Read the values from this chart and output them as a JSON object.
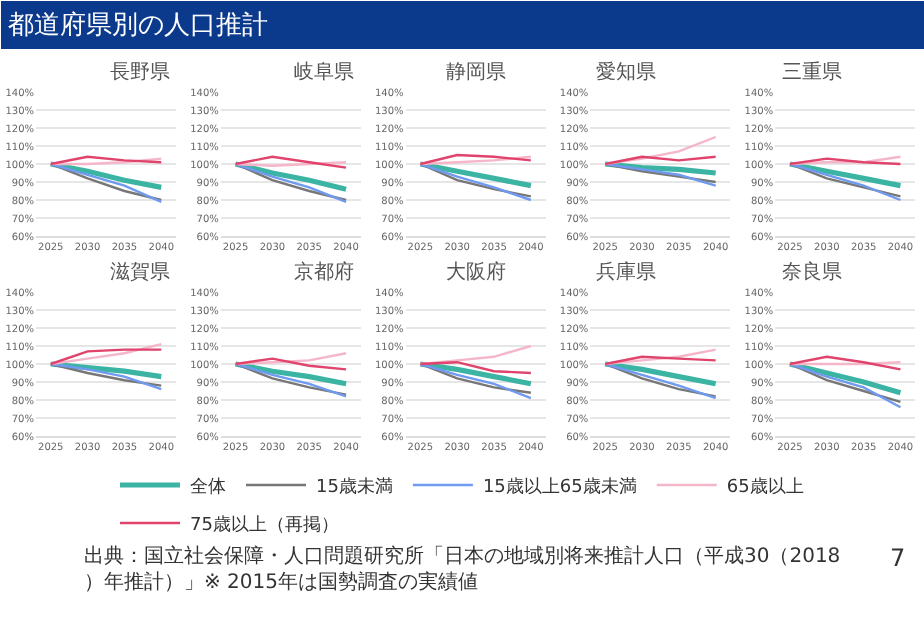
{
  "chart_data": [
    {
      "type": "line",
      "title": "長野県",
      "annotations": [
        "都道府県別の人口推計",
        "出典：国立社会保障・人口問題研究所「日本の地域別将来推計人口（平成30（2018）年推計）」※ 2015年は国勢調査の実績値",
        "7"
      ],
      "x": [
        2025,
        2030,
        2035,
        2040
      ],
      "xticks": [
        2025,
        2030,
        2035,
        2040
      ],
      "xlim": [
        2023,
        2042
      ],
      "ylim": [
        60,
        140
      ],
      "yticks": [
        {
          "value": 60,
          "label": "60%"
        },
        {
          "value": 70,
          "label": "70%"
        },
        {
          "value": 80,
          "label": "80%"
        },
        {
          "value": 90,
          "label": "90%"
        },
        {
          "value": 100,
          "label": "100%"
        },
        {
          "value": 110,
          "label": "110%"
        },
        {
          "value": 120,
          "label": "120%"
        },
        {
          "value": 130,
          "label": "130%"
        },
        {
          "value": 140,
          "label": "140%"
        }
      ],
      "grid": "y",
      "legend": "bottom",
      "series": [
        {
          "name": "全体",
          "color": "#3cb4a4",
          "values": [
            100,
            96,
            91,
            87
          ]
        },
        {
          "name": "15歳未満",
          "color": "#777777",
          "values": [
            100,
            92,
            85,
            80
          ]
        },
        {
          "name": "15歳以上65歳未満",
          "color": "#6f9af0",
          "values": [
            100,
            94,
            88,
            79
          ]
        },
        {
          "name": "65歳以上",
          "color": "#f4b6c8",
          "values": [
            100,
            100,
            101,
            103
          ]
        },
        {
          "name": "75歳以上（再掲）",
          "color": "#e0446c",
          "values": [
            100,
            104,
            102,
            101
          ]
        }
      ]
    },
    {
      "type": "line",
      "title": "岐阜県",
      "x": [
        2025,
        2030,
        2035,
        2040
      ],
      "xticks": [
        2025,
        2030,
        2035,
        2040
      ],
      "xlim": [
        2023,
        2042
      ],
      "ylim": [
        60,
        140
      ],
      "yticks": [
        {
          "value": 60,
          "label": "60%"
        },
        {
          "value": 70,
          "label": "70%"
        },
        {
          "value": 80,
          "label": "80%"
        },
        {
          "value": 90,
          "label": "90%"
        },
        {
          "value": 100,
          "label": "100%"
        },
        {
          "value": 110,
          "label": "110%"
        },
        {
          "value": 120,
          "label": "120%"
        },
        {
          "value": 130,
          "label": "130%"
        },
        {
          "value": 140,
          "label": "140%"
        }
      ],
      "grid": "y",
      "series": [
        {
          "name": "全体",
          "color": "#3cb4a4",
          "values": [
            100,
            95,
            91,
            86
          ]
        },
        {
          "name": "15歳未満",
          "color": "#777777",
          "values": [
            100,
            91,
            85,
            80
          ]
        },
        {
          "name": "15歳以上65歳未満",
          "color": "#6f9af0",
          "values": [
            100,
            93,
            87,
            79
          ]
        },
        {
          "name": "65歳以上",
          "color": "#f4b6c8",
          "values": [
            100,
            99,
            100,
            101
          ]
        },
        {
          "name": "75歳以上（再掲）",
          "color": "#e0446c",
          "values": [
            100,
            104,
            101,
            98
          ]
        }
      ]
    },
    {
      "type": "line",
      "title": "静岡県",
      "x": [
        2025,
        2030,
        2035,
        2040
      ],
      "xticks": [
        2025,
        2030,
        2035,
        2040
      ],
      "xlim": [
        2023,
        2042
      ],
      "ylim": [
        60,
        140
      ],
      "yticks": [
        {
          "value": 60,
          "label": "60%"
        },
        {
          "value": 70,
          "label": "70%"
        },
        {
          "value": 80,
          "label": "80%"
        },
        {
          "value": 90,
          "label": "90%"
        },
        {
          "value": 100,
          "label": "100%"
        },
        {
          "value": 110,
          "label": "110%"
        },
        {
          "value": 120,
          "label": "120%"
        },
        {
          "value": 130,
          "label": "130%"
        },
        {
          "value": 140,
          "label": "140%"
        }
      ],
      "grid": "y",
      "series": [
        {
          "name": "全体",
          "color": "#3cb4a4",
          "values": [
            100,
            96,
            92,
            88
          ]
        },
        {
          "name": "15歳未満",
          "color": "#777777",
          "values": [
            100,
            91,
            86,
            82
          ]
        },
        {
          "name": "15歳以上65歳未満",
          "color": "#6f9af0",
          "values": [
            100,
            93,
            87,
            80
          ]
        },
        {
          "name": "65歳以上",
          "color": "#f4b6c8",
          "values": [
            100,
            101,
            102,
            104
          ]
        },
        {
          "name": "75歳以上（再掲）",
          "color": "#e0446c",
          "values": [
            100,
            105,
            104,
            102
          ]
        }
      ]
    },
    {
      "type": "line",
      "title": "愛知県",
      "x": [
        2025,
        2030,
        2035,
        2040
      ],
      "xticks": [
        2025,
        2030,
        2035,
        2040
      ],
      "xlim": [
        2023,
        2042
      ],
      "ylim": [
        60,
        140
      ],
      "yticks": [
        {
          "value": 60,
          "label": "60%"
        },
        {
          "value": 70,
          "label": "70%"
        },
        {
          "value": 80,
          "label": "80%"
        },
        {
          "value": 90,
          "label": "90%"
        },
        {
          "value": 100,
          "label": "100%"
        },
        {
          "value": 110,
          "label": "110%"
        },
        {
          "value": 120,
          "label": "120%"
        },
        {
          "value": 130,
          "label": "130%"
        },
        {
          "value": 140,
          "label": "140%"
        }
      ],
      "grid": "y",
      "series": [
        {
          "name": "全体",
          "color": "#3cb4a4",
          "values": [
            100,
            98,
            97,
            95
          ]
        },
        {
          "name": "15歳未満",
          "color": "#777777",
          "values": [
            100,
            96,
            93,
            90
          ]
        },
        {
          "name": "15歳以上65歳未満",
          "color": "#6f9af0",
          "values": [
            100,
            97,
            94,
            88
          ]
        },
        {
          "name": "65歳以上",
          "color": "#f4b6c8",
          "values": [
            100,
            103,
            107,
            115
          ]
        },
        {
          "name": "75歳以上（再掲）",
          "color": "#e0446c",
          "values": [
            100,
            104,
            102,
            104
          ]
        }
      ]
    },
    {
      "type": "line",
      "title": "三重県",
      "x": [
        2025,
        2030,
        2035,
        2040
      ],
      "xticks": [
        2025,
        2030,
        2035,
        2040
      ],
      "xlim": [
        2023,
        2042
      ],
      "ylim": [
        60,
        140
      ],
      "yticks": [
        {
          "value": 60,
          "label": "60%"
        },
        {
          "value": 70,
          "label": "70%"
        },
        {
          "value": 80,
          "label": "80%"
        },
        {
          "value": 90,
          "label": "90%"
        },
        {
          "value": 100,
          "label": "100%"
        },
        {
          "value": 110,
          "label": "110%"
        },
        {
          "value": 120,
          "label": "120%"
        },
        {
          "value": 130,
          "label": "130%"
        },
        {
          "value": 140,
          "label": "140%"
        }
      ],
      "grid": "y",
      "series": [
        {
          "name": "全体",
          "color": "#3cb4a4",
          "values": [
            100,
            96,
            92,
            88
          ]
        },
        {
          "name": "15歳未満",
          "color": "#777777",
          "values": [
            100,
            92,
            87,
            82
          ]
        },
        {
          "name": "15歳以上65歳未満",
          "color": "#6f9af0",
          "values": [
            100,
            94,
            88,
            80
          ]
        },
        {
          "name": "65歳以上",
          "color": "#f4b6c8",
          "values": [
            100,
            101,
            101,
            104
          ]
        },
        {
          "name": "75歳以上（再掲）",
          "color": "#e0446c",
          "values": [
            100,
            103,
            101,
            100
          ]
        }
      ]
    },
    {
      "type": "line",
      "title": "滋賀県",
      "x": [
        2025,
        2030,
        2035,
        2040
      ],
      "xticks": [
        2025,
        2030,
        2035,
        2040
      ],
      "xlim": [
        2023,
        2042
      ],
      "ylim": [
        60,
        140
      ],
      "yticks": [
        {
          "value": 60,
          "label": "60%"
        },
        {
          "value": 70,
          "label": "70%"
        },
        {
          "value": 80,
          "label": "80%"
        },
        {
          "value": 90,
          "label": "90%"
        },
        {
          "value": 100,
          "label": "100%"
        },
        {
          "value": 110,
          "label": "110%"
        },
        {
          "value": 120,
          "label": "120%"
        },
        {
          "value": 130,
          "label": "130%"
        },
        {
          "value": 140,
          "label": "140%"
        }
      ],
      "grid": "y",
      "series": [
        {
          "name": "全体",
          "color": "#3cb4a4",
          "values": [
            100,
            98,
            96,
            93
          ]
        },
        {
          "name": "15歳未満",
          "color": "#777777",
          "values": [
            100,
            95,
            91,
            88
          ]
        },
        {
          "name": "15歳以上65歳未満",
          "color": "#6f9af0",
          "values": [
            100,
            97,
            93,
            86
          ]
        },
        {
          "name": "65歳以上",
          "color": "#f4b6c8",
          "values": [
            100,
            103,
            106,
            111
          ]
        },
        {
          "name": "75歳以上（再掲）",
          "color": "#e0446c",
          "values": [
            100,
            107,
            108,
            108
          ]
        }
      ]
    },
    {
      "type": "line",
      "title": "京都府",
      "x": [
        2025,
        2030,
        2035,
        2040
      ],
      "xticks": [
        2025,
        2030,
        2035,
        2040
      ],
      "xlim": [
        2023,
        2042
      ],
      "ylim": [
        60,
        140
      ],
      "yticks": [
        {
          "value": 60,
          "label": "60%"
        },
        {
          "value": 70,
          "label": "70%"
        },
        {
          "value": 80,
          "label": "80%"
        },
        {
          "value": 90,
          "label": "90%"
        },
        {
          "value": 100,
          "label": "100%"
        },
        {
          "value": 110,
          "label": "110%"
        },
        {
          "value": 120,
          "label": "120%"
        },
        {
          "value": 130,
          "label": "130%"
        },
        {
          "value": 140,
          "label": "140%"
        }
      ],
      "grid": "y",
      "series": [
        {
          "name": "全体",
          "color": "#3cb4a4",
          "values": [
            100,
            96,
            93,
            89
          ]
        },
        {
          "name": "15歳未満",
          "color": "#777777",
          "values": [
            100,
            92,
            87,
            83
          ]
        },
        {
          "name": "15歳以上65歳未満",
          "color": "#6f9af0",
          "values": [
            100,
            94,
            89,
            82
          ]
        },
        {
          "name": "65歳以上",
          "color": "#f4b6c8",
          "values": [
            100,
            101,
            102,
            106
          ]
        },
        {
          "name": "75歳以上（再掲）",
          "color": "#e0446c",
          "values": [
            100,
            103,
            99,
            97
          ]
        }
      ]
    },
    {
      "type": "line",
      "title": "大阪府",
      "x": [
        2025,
        2030,
        2035,
        2040
      ],
      "xticks": [
        2025,
        2030,
        2035,
        2040
      ],
      "xlim": [
        2023,
        2042
      ],
      "ylim": [
        60,
        140
      ],
      "yticks": [
        {
          "value": 60,
          "label": "60%"
        },
        {
          "value": 70,
          "label": "70%"
        },
        {
          "value": 80,
          "label": "80%"
        },
        {
          "value": 90,
          "label": "90%"
        },
        {
          "value": 100,
          "label": "100%"
        },
        {
          "value": 110,
          "label": "110%"
        },
        {
          "value": 120,
          "label": "120%"
        },
        {
          "value": 130,
          "label": "130%"
        },
        {
          "value": 140,
          "label": "140%"
        }
      ],
      "grid": "y",
      "series": [
        {
          "name": "全体",
          "color": "#3cb4a4",
          "values": [
            100,
            97,
            93,
            89
          ]
        },
        {
          "name": "15歳未満",
          "color": "#777777",
          "values": [
            100,
            92,
            87,
            84
          ]
        },
        {
          "name": "15歳以上65歳未満",
          "color": "#6f9af0",
          "values": [
            100,
            94,
            89,
            81
          ]
        },
        {
          "name": "65歳以上",
          "color": "#f4b6c8",
          "values": [
            100,
            102,
            104,
            110
          ]
        },
        {
          "name": "75歳以上（再掲）",
          "color": "#e0446c",
          "values": [
            100,
            101,
            96,
            95
          ]
        }
      ]
    },
    {
      "type": "line",
      "title": "兵庫県",
      "x": [
        2025,
        2030,
        2035,
        2040
      ],
      "xticks": [
        2025,
        2030,
        2035,
        2040
      ],
      "xlim": [
        2023,
        2042
      ],
      "ylim": [
        60,
        140
      ],
      "yticks": [
        {
          "value": 60,
          "label": "60%"
        },
        {
          "value": 70,
          "label": "70%"
        },
        {
          "value": 80,
          "label": "80%"
        },
        {
          "value": 90,
          "label": "90%"
        },
        {
          "value": 100,
          "label": "100%"
        },
        {
          "value": 110,
          "label": "110%"
        },
        {
          "value": 120,
          "label": "120%"
        },
        {
          "value": 130,
          "label": "130%"
        },
        {
          "value": 140,
          "label": "140%"
        }
      ],
      "grid": "y",
      "series": [
        {
          "name": "全体",
          "color": "#3cb4a4",
          "values": [
            100,
            97,
            93,
            89
          ]
        },
        {
          "name": "15歳未満",
          "color": "#777777",
          "values": [
            100,
            92,
            86,
            82
          ]
        },
        {
          "name": "15歳以上65歳未満",
          "color": "#6f9af0",
          "values": [
            100,
            94,
            88,
            81
          ]
        },
        {
          "name": "65歳以上",
          "color": "#f4b6c8",
          "values": [
            100,
            102,
            104,
            108
          ]
        },
        {
          "name": "75歳以上（再掲）",
          "color": "#e0446c",
          "values": [
            100,
            104,
            103,
            102
          ]
        }
      ]
    },
    {
      "type": "line",
      "title": "奈良県",
      "x": [
        2025,
        2030,
        2035,
        2040
      ],
      "xticks": [
        2025,
        2030,
        2035,
        2040
      ],
      "xlim": [
        2023,
        2042
      ],
      "ylim": [
        60,
        140
      ],
      "yticks": [
        {
          "value": 60,
          "label": "60%"
        },
        {
          "value": 70,
          "label": "70%"
        },
        {
          "value": 80,
          "label": "80%"
        },
        {
          "value": 90,
          "label": "90%"
        },
        {
          "value": 100,
          "label": "100%"
        },
        {
          "value": 110,
          "label": "110%"
        },
        {
          "value": 120,
          "label": "120%"
        },
        {
          "value": 130,
          "label": "130%"
        },
        {
          "value": 140,
          "label": "140%"
        }
      ],
      "grid": "y",
      "series": [
        {
          "name": "全体",
          "color": "#3cb4a4",
          "values": [
            100,
            95,
            90,
            84
          ]
        },
        {
          "name": "15歳未満",
          "color": "#777777",
          "values": [
            100,
            91,
            85,
            79
          ]
        },
        {
          "name": "15歳以上65歳未満",
          "color": "#6f9af0",
          "values": [
            100,
            93,
            87,
            76
          ]
        },
        {
          "name": "65歳以上",
          "color": "#f4b6c8",
          "values": [
            100,
            100,
            100,
            101
          ]
        },
        {
          "name": "75歳以上（再掲）",
          "color": "#e0446c",
          "values": [
            100,
            104,
            101,
            97
          ]
        }
      ]
    }
  ]
}
